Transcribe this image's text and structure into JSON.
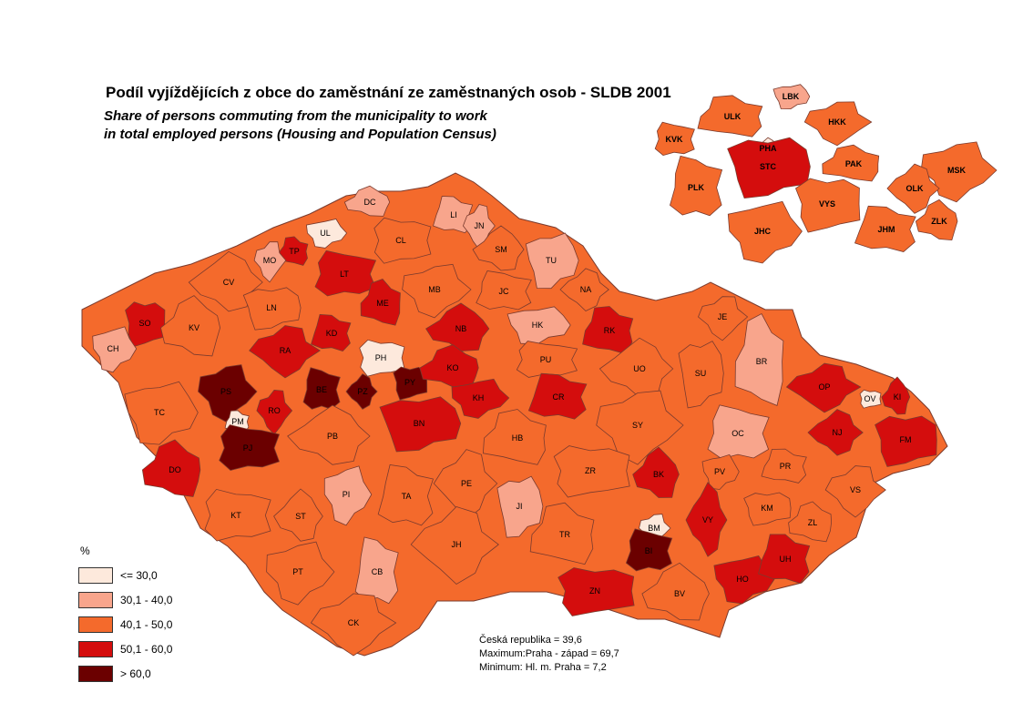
{
  "title": "Podíl vyjíždějících z obce do zaměstnání ze zaměstnaných osob - SLDB 2001",
  "subtitle_lines": [
    "Share of persons commuting from the municipality to work",
    "in total employed persons (Housing and Population Census)"
  ],
  "legend": {
    "unit": "%",
    "classes": [
      {
        "label": "<= 30,0",
        "color": "#fde9dc"
      },
      {
        "label": "30,1 - 40,0",
        "color": "#f8a58c"
      },
      {
        "label": "40,1 - 50,0",
        "color": "#f46a2c"
      },
      {
        "label": "50,1 - 60,0",
        "color": "#d40d0d"
      },
      {
        "label": "> 60,0",
        "color": "#6b0000"
      }
    ]
  },
  "stats": [
    "Česká republika = 39,6",
    "Maximum:Praha - západ  = 69,7",
    "Minimum: Hl. m. Praha  = 7,2"
  ],
  "colors": {
    "background": "#ffffff",
    "border": "#7a3b2e"
  },
  "districts": [
    {
      "code": "DC",
      "class": 1
    },
    {
      "code": "UL",
      "class": 0
    },
    {
      "code": "LI",
      "class": 1
    },
    {
      "code": "JN",
      "class": 1
    },
    {
      "code": "CL",
      "class": 2
    },
    {
      "code": "SM",
      "class": 2
    },
    {
      "code": "TU",
      "class": 1
    },
    {
      "code": "TP",
      "class": 3
    },
    {
      "code": "MO",
      "class": 1
    },
    {
      "code": "LT",
      "class": 3
    },
    {
      "code": "CV",
      "class": 2
    },
    {
      "code": "LN",
      "class": 2
    },
    {
      "code": "ME",
      "class": 3
    },
    {
      "code": "MB",
      "class": 2
    },
    {
      "code": "JC",
      "class": 2
    },
    {
      "code": "NA",
      "class": 2
    },
    {
      "code": "SO",
      "class": 3
    },
    {
      "code": "KV",
      "class": 2
    },
    {
      "code": "CH",
      "class": 1
    },
    {
      "code": "KD",
      "class": 3
    },
    {
      "code": "RA",
      "class": 3
    },
    {
      "code": "PH",
      "class": 0
    },
    {
      "code": "NB",
      "class": 3
    },
    {
      "code": "HK",
      "class": 1
    },
    {
      "code": "RK",
      "class": 3
    },
    {
      "code": "JE",
      "class": 2
    },
    {
      "code": "PU",
      "class": 2
    },
    {
      "code": "UO",
      "class": 2
    },
    {
      "code": "SU",
      "class": 2
    },
    {
      "code": "BR",
      "class": 1
    },
    {
      "code": "PS",
      "class": 4
    },
    {
      "code": "BE",
      "class": 4
    },
    {
      "code": "PZ",
      "class": 4
    },
    {
      "code": "PY",
      "class": 4
    },
    {
      "code": "KO",
      "class": 3
    },
    {
      "code": "KH",
      "class": 3
    },
    {
      "code": "CR",
      "class": 3
    },
    {
      "code": "OP",
      "class": 3
    },
    {
      "code": "OV",
      "class": 0
    },
    {
      "code": "KI",
      "class": 3
    },
    {
      "code": "TC",
      "class": 2
    },
    {
      "code": "PM",
      "class": 0
    },
    {
      "code": "RO",
      "class": 3
    },
    {
      "code": "PJ",
      "class": 4
    },
    {
      "code": "PB",
      "class": 2
    },
    {
      "code": "BN",
      "class": 3
    },
    {
      "code": "HB",
      "class": 2
    },
    {
      "code": "SY",
      "class": 2
    },
    {
      "code": "OC",
      "class": 1
    },
    {
      "code": "NJ",
      "class": 3
    },
    {
      "code": "FM",
      "class": 3
    },
    {
      "code": "DO",
      "class": 3
    },
    {
      "code": "PI",
      "class": 1
    },
    {
      "code": "TA",
      "class": 2
    },
    {
      "code": "PE",
      "class": 2
    },
    {
      "code": "ZR",
      "class": 2
    },
    {
      "code": "BK",
      "class": 3
    },
    {
      "code": "PV",
      "class": 2
    },
    {
      "code": "PR",
      "class": 2
    },
    {
      "code": "VS",
      "class": 2
    },
    {
      "code": "KT",
      "class": 2
    },
    {
      "code": "ST",
      "class": 2
    },
    {
      "code": "JI",
      "class": 1
    },
    {
      "code": "TR",
      "class": 2
    },
    {
      "code": "BM",
      "class": 0
    },
    {
      "code": "BI",
      "class": 4
    },
    {
      "code": "VY",
      "class": 3
    },
    {
      "code": "KM",
      "class": 2
    },
    {
      "code": "ZL",
      "class": 2
    },
    {
      "code": "PT",
      "class": 2
    },
    {
      "code": "CB",
      "class": 1
    },
    {
      "code": "JH",
      "class": 2
    },
    {
      "code": "ZN",
      "class": 3
    },
    {
      "code": "BV",
      "class": 2
    },
    {
      "code": "HO",
      "class": 3
    },
    {
      "code": "UH",
      "class": 3
    },
    {
      "code": "CK",
      "class": 2
    }
  ],
  "regions": [
    {
      "code": "LBK",
      "class": 1
    },
    {
      "code": "ULK",
      "class": 2
    },
    {
      "code": "HKK",
      "class": 2
    },
    {
      "code": "KVK",
      "class": 2
    },
    {
      "code": "PHA",
      "class": 0
    },
    {
      "code": "STC",
      "class": 3
    },
    {
      "code": "PAK",
      "class": 2
    },
    {
      "code": "MSK",
      "class": 2
    },
    {
      "code": "PLK",
      "class": 2
    },
    {
      "code": "OLK",
      "class": 2
    },
    {
      "code": "VYS",
      "class": 2
    },
    {
      "code": "ZLK",
      "class": 2
    },
    {
      "code": "JHC",
      "class": 2
    },
    {
      "code": "JHM",
      "class": 2
    }
  ]
}
